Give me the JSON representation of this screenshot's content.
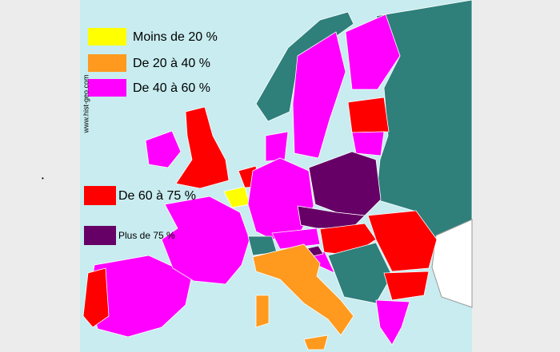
{
  "legend": [
    {
      "label": "Moins de 20 %",
      "color": "#ffff00"
    },
    {
      "label": "De 20 à 40 %",
      "color": "#ff9a1e"
    },
    {
      "label": "De 40 à 60 %",
      "color": "#ff00ff"
    },
    {
      "label": "De 60 à 75 %",
      "color": "#ff0000"
    },
    {
      "label": "Plus de 75 %",
      "color": "#660066"
    }
  ],
  "watermark": "www.hist-geo.com"
}
